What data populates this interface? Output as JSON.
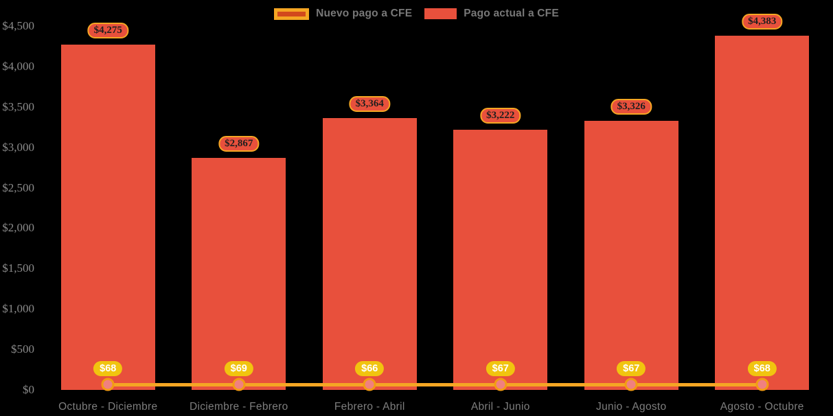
{
  "legend": {
    "items": [
      {
        "label": "Nuevo pago a CFE",
        "swatch_fill": "#D2491C",
        "swatch_border": "#F5A623"
      },
      {
        "label": "Pago actual a CFE",
        "swatch_fill": "#E8503C",
        "swatch_border": null
      }
    ]
  },
  "colors": {
    "background": "#000000",
    "bar": "#E8503C",
    "line": "#F5A623",
    "marker_fill": "#F08080",
    "marker_border": "#F39C12",
    "bar_label_bg": "#E8503C",
    "bar_label_border": "#F5A623",
    "bar_label_text": "#1F1F1F",
    "point_label_bg": "#F1C40F",
    "point_label_text": "#FFFFFF",
    "axis_text": "#8A8A8A",
    "xaxis_text": "#7E7E7E",
    "legend_text": "#787878"
  },
  "chart_data": {
    "type": "bar",
    "subtype": "combo-bar-line",
    "categories": [
      "Octubre - Diciembre",
      "Diciembre - Febrero",
      "Febrero - Abril",
      "Abril - Junio",
      "Junio - Agosto",
      "Agosto - Octubre"
    ],
    "series": [
      {
        "name": "Pago actual a CFE",
        "type": "bar",
        "values": [
          4275,
          2867,
          3364,
          3222,
          3326,
          4383
        ],
        "labels": [
          "$4,275",
          "$2,867",
          "$3,364",
          "$3,222",
          "$3,326",
          "$4,383"
        ]
      },
      {
        "name": "Nuevo pago a CFE",
        "type": "line",
        "values": [
          68,
          69,
          66,
          67,
          67,
          68
        ],
        "labels": [
          "$68",
          "$69",
          "$66",
          "$67",
          "$67",
          "$68"
        ]
      }
    ],
    "title": "",
    "xlabel": "",
    "ylabel": "",
    "ylim": [
      0,
      4500
    ],
    "yticks": [
      {
        "value": 0,
        "label": "$0"
      },
      {
        "value": 500,
        "label": "$500"
      },
      {
        "value": 1000,
        "label": "$1,000"
      },
      {
        "value": 1500,
        "label": "$1,500"
      },
      {
        "value": 2000,
        "label": "$2,000"
      },
      {
        "value": 2500,
        "label": "$2,500"
      },
      {
        "value": 3000,
        "label": "$3,000"
      },
      {
        "value": 3500,
        "label": "$3,500"
      },
      {
        "value": 4000,
        "label": "$4,000"
      },
      {
        "value": 4500,
        "label": "$4,500"
      }
    ],
    "grid": false,
    "legend_position": "top-center"
  }
}
